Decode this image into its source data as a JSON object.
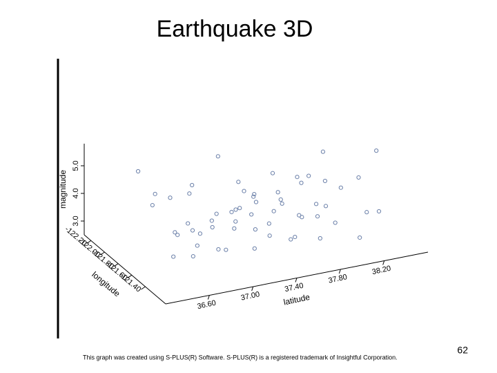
{
  "slide": {
    "title": "Earthquake 3D",
    "footnote": "This graph was created using S-PLUS(R) Software. S-PLUS(R) is a registered trademark of Insightful Corporation.",
    "page_number": 62
  },
  "chart_data": {
    "type": "scatter3d",
    "xlabel": "longitude",
    "ylabel": "latitude",
    "zlabel": "magnitude",
    "xlim": [
      -122.3,
      -121.1
    ],
    "ylim": [
      36.2,
      38.6
    ],
    "zlim": [
      2.5,
      5.8
    ],
    "xticks": [
      {
        "value": -122.2,
        "label": "-122.20"
      },
      {
        "value": -122.0,
        "label": "-122.00"
      },
      {
        "value": -121.8,
        "label": "-121.80"
      },
      {
        "value": -121.6,
        "label": "-121.60"
      },
      {
        "value": -121.4,
        "label": "-121.40"
      }
    ],
    "yticks": [
      {
        "value": 36.6,
        "label": "36.60"
      },
      {
        "value": 37.0,
        "label": "37.00"
      },
      {
        "value": 37.4,
        "label": "37.40"
      },
      {
        "value": 37.8,
        "label": "37.80"
      },
      {
        "value": 38.2,
        "label": "38.20"
      }
    ],
    "zticks": [
      {
        "value": 3,
        "label": "3.0"
      },
      {
        "value": 4,
        "label": "4.0"
      },
      {
        "value": 5,
        "label": "5.0"
      }
    ],
    "color": "#6a7fa8",
    "x": [
      -121.9,
      -121.8,
      -121.7,
      -121.6,
      -121.5,
      -121.8,
      -121.7,
      -121.9,
      -122.0,
      -121.6,
      -121.7,
      -121.8,
      -122.1,
      -121.9,
      -121.6,
      -121.65,
      -121.7,
      -121.6,
      -121.75,
      -121.5,
      -121.4,
      -121.5,
      -121.45,
      -121.55,
      -121.6,
      -122.0,
      -122.1,
      -122.15,
      -121.9,
      -122.0,
      -121.8,
      -121.9,
      -122.05,
      -121.7,
      -121.55,
      -121.45,
      -121.35,
      -121.4,
      -121.5,
      -121.3,
      -121.9,
      -121.8,
      -121.7,
      -121.6,
      -121.5,
      -122.2,
      -122.1,
      -122.2,
      -121.85,
      -121.75,
      -121.65,
      -121.55,
      -121.95,
      -121.85,
      -121.75,
      -121.9,
      -122.0,
      -121.8,
      -121.7,
      -121.65
    ],
    "y": [
      36.9,
      36.95,
      37.0,
      36.8,
      36.7,
      37.1,
      37.2,
      37.3,
      37.4,
      37.5,
      37.6,
      37.7,
      37.8,
      37.9,
      37.95,
      38.0,
      37.95,
      37.9,
      37.85,
      37.4,
      37.2,
      37.0,
      36.9,
      37.3,
      37.15,
      36.8,
      36.7,
      36.6,
      36.6,
      37.0,
      37.3,
      37.5,
      37.6,
      37.4,
      37.7,
      37.6,
      37.5,
      37.8,
      38.0,
      38.1,
      38.3,
      38.4,
      38.5,
      38.35,
      38.4,
      37.1,
      37.3,
      37.6,
      36.75,
      36.85,
      36.65,
      36.55,
      37.15,
      37.45,
      37.55,
      37.75,
      38.0,
      38.1,
      37.25,
      37.85
    ],
    "z": [
      3.2,
      3.0,
      3.4,
      3.1,
      3.0,
      3.6,
      3.2,
      3.3,
      3.1,
      3.8,
      4.2,
      3.5,
      3.9,
      4.1,
      5.6,
      4.4,
      3.5,
      3.3,
      3.0,
      3.2,
      3.1,
      3.0,
      3.2,
      3.4,
      3.7,
      4.0,
      3.6,
      4.8,
      4.5,
      4.3,
      4.6,
      3.7,
      3.4,
      4.0,
      3.6,
      3.1,
      3.3,
      3.0,
      3.2,
      3.0,
      3.4,
      3.9,
      5.0,
      3.1,
      3.3,
      3.5,
      4.9,
      3.2,
      3.1,
      3.3,
      3.5,
      3.0,
      3.0,
      3.2,
      3.0,
      3.4,
      3.6,
      3.1,
      3.9,
      4.7
    ]
  }
}
